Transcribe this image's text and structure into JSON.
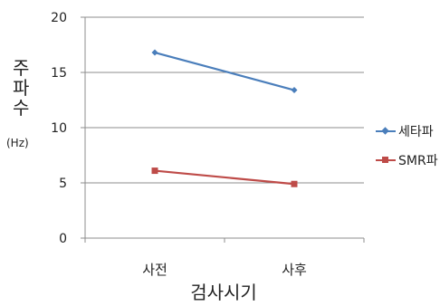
{
  "chart_data": {
    "type": "line",
    "title": "",
    "categories": [
      "사전",
      "사후"
    ],
    "series": [
      {
        "name": "세타파",
        "values": [
          16.8,
          13.4
        ],
        "color": "#4a7ebb",
        "marker": "diamond"
      },
      {
        "name": "SMR파",
        "values": [
          6.1,
          4.9
        ],
        "color": "#be4b48",
        "marker": "square"
      }
    ],
    "xlabel": "검사시기",
    "ylabel": [
      "주",
      "파",
      "수"
    ],
    "ylabel_unit": "(Hz)",
    "ylim": [
      0,
      20
    ],
    "yticks": [
      0,
      5,
      10,
      15,
      20
    ],
    "grid": true,
    "legend_position": "right"
  }
}
